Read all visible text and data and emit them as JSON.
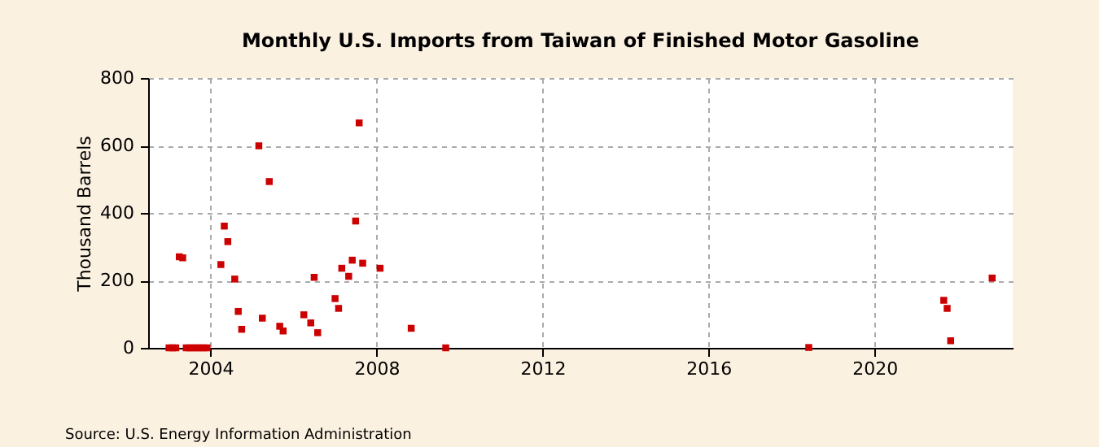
{
  "chart_data": {
    "type": "scatter",
    "title": "Monthly U.S. Imports from Taiwan of Finished Motor Gasoline",
    "ylabel": "Thousand Barrels",
    "x": [
      "2003-01",
      "2003-02",
      "2003-03",
      "2003-04",
      "2003-05",
      "2003-06",
      "2003-07",
      "2003-08",
      "2003-09",
      "2003-10",
      "2003-11",
      "2003-12",
      "2004-04",
      "2004-05",
      "2004-06",
      "2004-08",
      "2004-09",
      "2004-10",
      "2005-03",
      "2005-04",
      "2005-06",
      "2005-09",
      "2005-10",
      "2006-04",
      "2006-06",
      "2006-07",
      "2006-08",
      "2007-01",
      "2007-02",
      "2007-03",
      "2007-05",
      "2007-06",
      "2007-07",
      "2007-08",
      "2007-09",
      "2008-02",
      "2008-11",
      "2009-09",
      "2018-06",
      "2021-09",
      "2021-10",
      "2021-11",
      "2022-11"
    ],
    "series": [
      {
        "color": "#cc0000",
        "values": [
          0,
          0,
          0,
          270,
          267,
          0,
          0,
          0,
          0,
          0,
          0,
          0,
          247,
          361,
          315,
          204,
          108,
          55,
          599,
          88,
          493,
          64,
          50,
          98,
          74,
          209,
          45,
          146,
          117,
          236,
          212,
          260,
          376,
          667,
          251,
          236,
          58,
          0,
          1,
          141,
          117,
          21,
          207
        ]
      }
    ],
    "xlim": [
      "2002-07",
      "2023-05"
    ],
    "xticks": [
      {
        "value": "2004",
        "label": "2004"
      },
      {
        "value": "2008",
        "label": "2008"
      },
      {
        "value": "2012",
        "label": "2012"
      },
      {
        "value": "2016",
        "label": "2016"
      },
      {
        "value": "2020",
        "label": "2020"
      }
    ],
    "ylim": [
      0,
      800
    ],
    "yticks": [
      0,
      200,
      400,
      600,
      800
    ],
    "grid": true,
    "marker": "square",
    "annotations": [
      "Source: U.S. Energy Information Administration"
    ]
  }
}
